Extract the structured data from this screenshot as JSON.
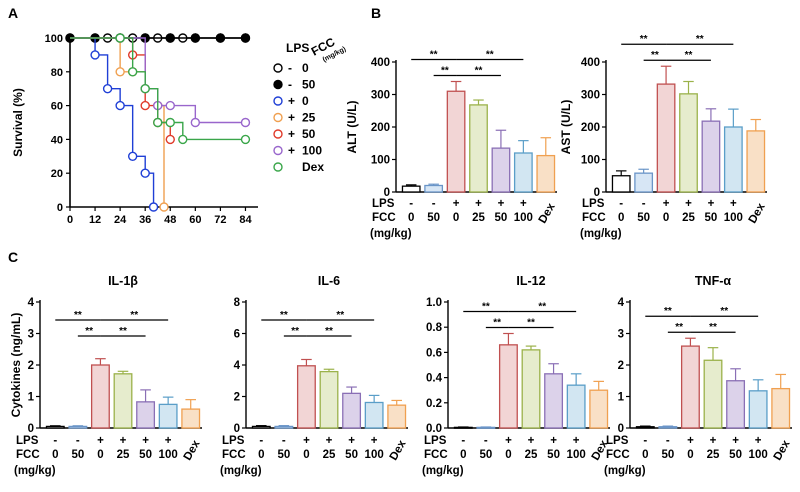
{
  "panel_labels": {
    "a": "A",
    "b": "B",
    "c": "C"
  },
  "colors": {
    "ctrl": "#000000",
    "fcc50": "#2233cc",
    "lps0": "#1f3fd6",
    "lps25": "#f0a050",
    "lps50": "#e03a2a",
    "lps100": "#9966cc",
    "dex": "#3aa64a",
    "bar_fill": [
      "#ffffff",
      "#d7e6f5",
      "#f2d5d5",
      "#e6eccd",
      "#dcd2ea",
      "#d2e6f2",
      "#f9e0c6"
    ],
    "bar_edge": [
      "#000000",
      "#6a95c8",
      "#c05050",
      "#9bb24a",
      "#8a6fb5",
      "#5a9ec8",
      "#f0a050"
    ]
  },
  "treatment_axis": {
    "lps_label": "LPS",
    "fcc_label": "FCC",
    "unit_label": "(mg/kg)",
    "lps": [
      "-",
      "-",
      "+",
      "+",
      "+",
      "+",
      "+"
    ],
    "fcc": [
      "0",
      "50",
      "0",
      "25",
      "50",
      "100",
      "Dex"
    ]
  },
  "chart_data": [
    {
      "id": "survival",
      "type": "line",
      "ylabel": "Survival (%)",
      "xlim": [
        0,
        90
      ],
      "ylim": [
        0,
        100
      ],
      "xticks": [
        0,
        12,
        24,
        36,
        48,
        60,
        72,
        84
      ],
      "yticks": [
        0,
        20,
        40,
        60,
        80,
        100
      ],
      "legend_title": {
        "lps": "LPS",
        "fcc": "FCC",
        "unit": "(mg/kg)"
      },
      "series": [
        {
          "legend_lps": "-",
          "legend_fcc": "0",
          "color": "#000000",
          "filled": false,
          "x": [
            0,
            12,
            18,
            24,
            30,
            36,
            42,
            48,
            54,
            60,
            72,
            84
          ],
          "y": [
            100,
            100,
            100,
            100,
            100,
            100,
            100,
            100,
            100,
            100,
            100,
            100
          ]
        },
        {
          "legend_lps": "-",
          "legend_fcc": "50",
          "color": "#000000",
          "filled": true,
          "x": [
            0,
            12,
            24,
            36,
            48,
            60,
            72,
            84
          ],
          "y": [
            100,
            100,
            100,
            100,
            100,
            100,
            100,
            100
          ]
        },
        {
          "legend_lps": "+",
          "legend_fcc": "0",
          "color": "#1f3fd6",
          "filled": false,
          "x": [
            0,
            12,
            18,
            24,
            30,
            36,
            40
          ],
          "y": [
            100,
            90,
            70,
            60,
            30,
            20,
            0
          ]
        },
        {
          "legend_lps": "+",
          "legend_fcc": "25",
          "color": "#f0a050",
          "filled": false,
          "x": [
            0,
            24,
            30,
            36,
            42,
            45
          ],
          "y": [
            100,
            80,
            80,
            70,
            60,
            0
          ]
        },
        {
          "legend_lps": "+",
          "legend_fcc": "50",
          "color": "#e03a2a",
          "filled": false,
          "x": [
            0,
            30,
            36,
            42,
            48
          ],
          "y": [
            100,
            90,
            60,
            50,
            40
          ]
        },
        {
          "legend_lps": "+",
          "legend_fcc": "100",
          "color": "#9966cc",
          "filled": false,
          "x": [
            0,
            36,
            42,
            48,
            60,
            84
          ],
          "y": [
            100,
            70,
            60,
            60,
            50,
            50
          ]
        },
        {
          "legend_lps": "",
          "legend_fcc": "Dex",
          "color": "#3aa64a",
          "filled": false,
          "x": [
            0,
            24,
            30,
            36,
            42,
            48,
            54,
            84
          ],
          "y": [
            100,
            100,
            80,
            70,
            50,
            50,
            40,
            40
          ]
        }
      ]
    },
    {
      "id": "alt",
      "type": "bar",
      "ylabel": "ALT (U/L)",
      "title": "",
      "ylim": [
        0,
        400
      ],
      "yticks": [
        0,
        100,
        200,
        300,
        400
      ],
      "ytick_labels": [
        "0",
        "100",
        "200",
        "300",
        "400"
      ],
      "values": [
        18,
        20,
        310,
        268,
        135,
        120,
        112
      ],
      "errors": [
        4,
        4,
        30,
        15,
        55,
        38,
        55
      ],
      "significance": [
        {
          "from": 1,
          "to": 2,
          "label": "**",
          "level": 1
        },
        {
          "from": 2,
          "to": 4,
          "label": "**",
          "level": 1
        },
        {
          "from": 0,
          "to": 2,
          "label": "**",
          "level": 2
        },
        {
          "from": 2,
          "to": 5,
          "label": "**",
          "level": 2
        }
      ]
    },
    {
      "id": "ast",
      "type": "bar",
      "ylabel": "AST (U/L)",
      "title": "",
      "ylim": [
        0,
        400
      ],
      "yticks": [
        0,
        100,
        200,
        300,
        400
      ],
      "ytick_labels": [
        "0",
        "100",
        "200",
        "300",
        "400"
      ],
      "values": [
        50,
        58,
        332,
        302,
        218,
        200,
        188
      ],
      "errors": [
        15,
        12,
        55,
        38,
        38,
        55,
        35
      ],
      "significance": [
        {
          "from": 1,
          "to": 2,
          "label": "**",
          "level": 1
        },
        {
          "from": 2,
          "to": 4,
          "label": "**",
          "level": 1
        },
        {
          "from": 0,
          "to": 2,
          "label": "**",
          "level": 2
        },
        {
          "from": 2,
          "to": 5,
          "label": "**",
          "level": 2
        }
      ]
    },
    {
      "id": "il1b",
      "type": "bar",
      "ylabel": "Cytokines (ng/mL)",
      "title": "IL-1β",
      "ylim": [
        0,
        4
      ],
      "yticks": [
        0,
        1,
        2,
        3,
        4
      ],
      "ytick_labels": [
        "0",
        "1",
        "2",
        "3",
        "4"
      ],
      "values": [
        0.05,
        0.05,
        2.0,
        1.72,
        0.83,
        0.75,
        0.6
      ],
      "errors": [
        0.02,
        0.02,
        0.2,
        0.08,
        0.38,
        0.23,
        0.3
      ],
      "significance": [
        {
          "from": 1,
          "to": 2,
          "label": "**",
          "level": 1
        },
        {
          "from": 2,
          "to": 4,
          "label": "**",
          "level": 1
        },
        {
          "from": 0,
          "to": 2,
          "label": "**",
          "level": 2
        },
        {
          "from": 2,
          "to": 5,
          "label": "**",
          "level": 2
        }
      ]
    },
    {
      "id": "il6",
      "type": "bar",
      "ylabel": "",
      "title": "IL-6",
      "ylim": [
        0,
        8
      ],
      "yticks": [
        0,
        2,
        4,
        6,
        8
      ],
      "ytick_labels": [
        "0",
        "2",
        "4",
        "6",
        "8"
      ],
      "values": [
        0.1,
        0.1,
        3.95,
        3.58,
        2.2,
        1.62,
        1.45
      ],
      "errors": [
        0.05,
        0.05,
        0.4,
        0.15,
        0.4,
        0.45,
        0.3
      ],
      "significance": [
        {
          "from": 1,
          "to": 2,
          "label": "**",
          "level": 1
        },
        {
          "from": 2,
          "to": 4,
          "label": "**",
          "level": 1
        },
        {
          "from": 0,
          "to": 2,
          "label": "**",
          "level": 2
        },
        {
          "from": 2,
          "to": 5,
          "label": "**",
          "level": 2
        }
      ]
    },
    {
      "id": "il12",
      "type": "bar",
      "ylabel": "",
      "title": "IL-12",
      "ylim": [
        0,
        1.0
      ],
      "yticks": [
        0,
        0.2,
        0.4,
        0.6,
        0.8,
        1.0
      ],
      "ytick_labels": [
        "0.0",
        "0.2",
        "0.4",
        "0.6",
        "0.8",
        "1.0"
      ],
      "values": [
        0.005,
        0.005,
        0.66,
        0.62,
        0.43,
        0.34,
        0.3
      ],
      "errors": [
        0.003,
        0.003,
        0.09,
        0.03,
        0.08,
        0.09,
        0.07
      ],
      "significance": [
        {
          "from": 1,
          "to": 2,
          "label": "**",
          "level": 1
        },
        {
          "from": 2,
          "to": 4,
          "label": "**",
          "level": 1
        },
        {
          "from": 0,
          "to": 2,
          "label": "**",
          "level": 2
        },
        {
          "from": 2,
          "to": 5,
          "label": "**",
          "level": 2
        }
      ]
    },
    {
      "id": "tnfa",
      "type": "bar",
      "ylabel": "",
      "title": "TNF-α",
      "ylim": [
        0,
        4
      ],
      "yticks": [
        0,
        1,
        2,
        3,
        4
      ],
      "ytick_labels": [
        "0",
        "1",
        "2",
        "3",
        "4"
      ],
      "values": [
        0.04,
        0.04,
        2.6,
        2.15,
        1.5,
        1.18,
        1.25
      ],
      "errors": [
        0.02,
        0.02,
        0.25,
        0.4,
        0.38,
        0.35,
        0.45
      ],
      "significance": [
        {
          "from": 1,
          "to": 2,
          "label": "**",
          "level": 1
        },
        {
          "from": 2,
          "to": 4,
          "label": "**",
          "level": 1
        },
        {
          "from": 0,
          "to": 2,
          "label": "**",
          "level": 2
        },
        {
          "from": 2,
          "to": 5,
          "label": "**",
          "level": 2
        }
      ]
    }
  ]
}
